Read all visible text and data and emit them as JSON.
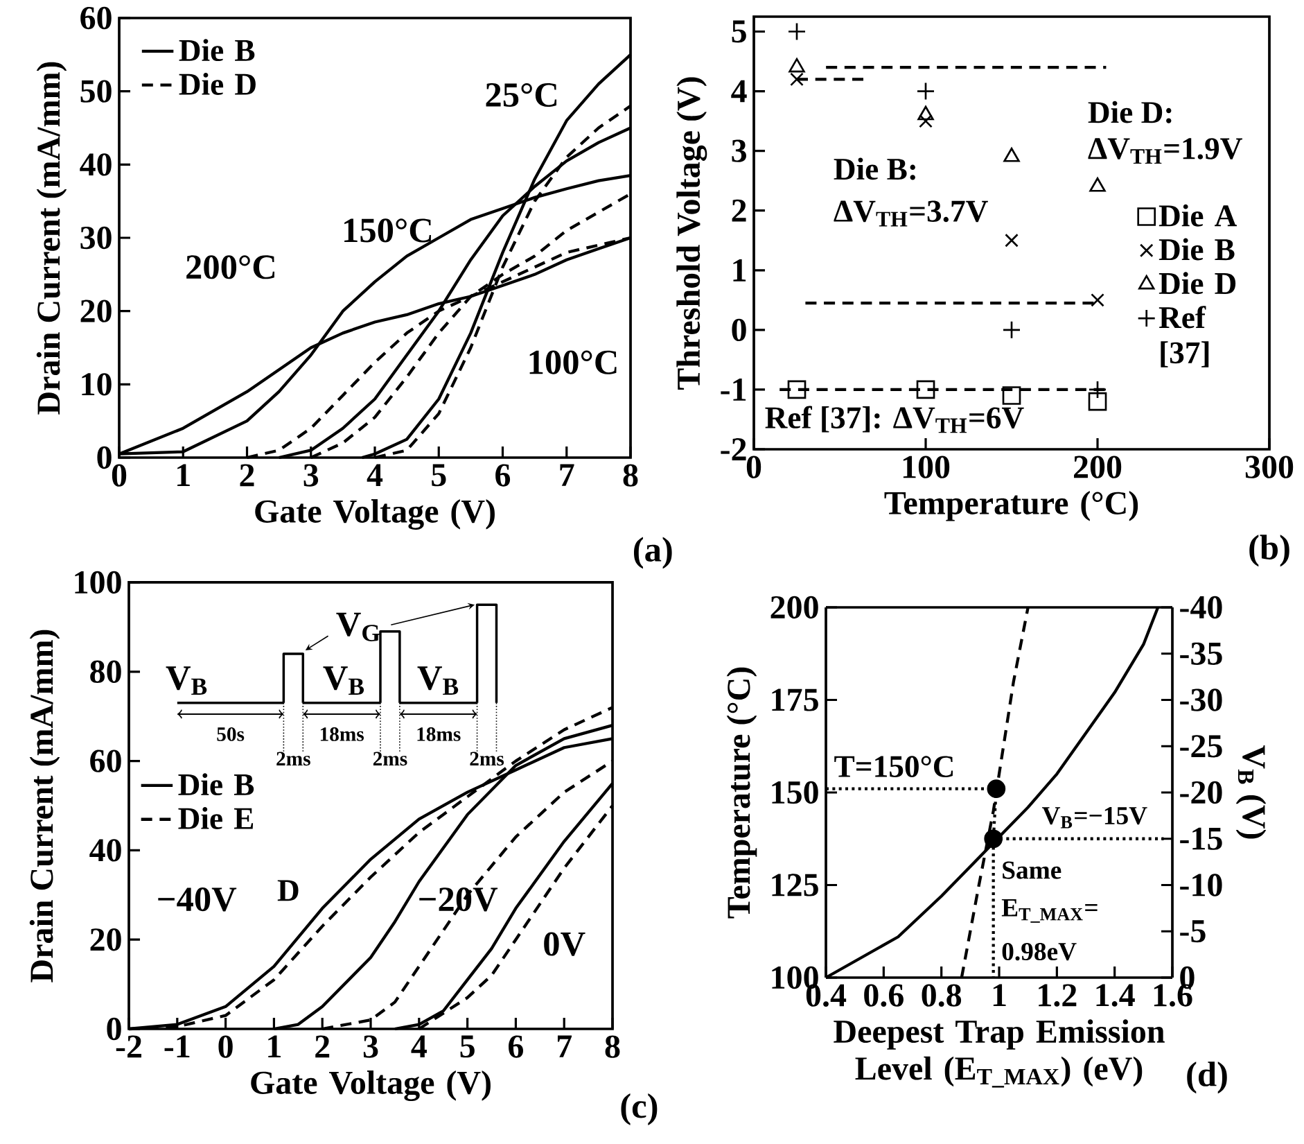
{
  "chart_data": [
    {
      "type": "line",
      "xlabel": "Gate Voltage (V)",
      "ylabel": "Drain Current (mA/mm)",
      "xlim": [
        0,
        8
      ],
      "ylim": [
        0,
        60
      ],
      "xticks": [
        0,
        1,
        2,
        3,
        4,
        5,
        6,
        7,
        8
      ],
      "yticks": [
        0,
        10,
        20,
        30,
        40,
        50,
        60
      ],
      "legend": "top left",
      "annotations": [
        "25°C",
        "150°C",
        "200°C",
        "100°C",
        "(a)"
      ],
      "series": [
        {
          "name": "Die B",
          "color": "#000000",
          "line_style": "solid",
          "x": [
            3.8,
            4,
            4.5,
            5,
            5.5,
            6,
            6.5,
            7,
            7.5,
            8
          ],
          "values": [
            0,
            0.5,
            2.5,
            8,
            17,
            28,
            38,
            46,
            51,
            55
          ]
        },
        {
          "name": "Die D",
          "color": "#000000",
          "line_style": "dashed",
          "x": [
            4,
            4.5,
            5,
            5.5,
            6,
            6.5,
            7,
            7.5,
            8
          ],
          "values": [
            0,
            1,
            6,
            15,
            26,
            35,
            41,
            45,
            48
          ]
        },
        {
          "color": "#000000",
          "line_style": "solid",
          "x": [
            2.5,
            3,
            3.5,
            4,
            4.5,
            5,
            5.5,
            6,
            6.5,
            7,
            7.5,
            8
          ],
          "values": [
            0,
            1,
            4,
            8,
            14,
            20,
            27,
            33,
            37,
            40.5,
            43,
            45
          ]
        },
        {
          "color": "#000000",
          "line_style": "solid",
          "x": [
            0,
            1,
            2,
            2.5,
            3,
            3.5,
            4,
            4.5,
            5,
            5.5,
            6,
            6.5,
            7,
            7.5,
            8
          ],
          "values": [
            0.5,
            0.8,
            5,
            9,
            14,
            20,
            24,
            27.5,
            30,
            32.5,
            34,
            35.5,
            36.7,
            37.8,
            38.5
          ]
        },
        {
          "color": "#000000",
          "line_style": "solid",
          "x": [
            0,
            1,
            2,
            2.5,
            3,
            3.5,
            4,
            4.5,
            5,
            5.5,
            6,
            6.5,
            7,
            7.5,
            8
          ],
          "values": [
            0.5,
            4,
            9,
            12,
            15,
            17,
            18.5,
            19.5,
            21,
            22,
            23.5,
            25,
            27,
            28.5,
            30
          ]
        },
        {
          "color": "#000000",
          "line_style": "dashed",
          "x": [
            3,
            3.5,
            4,
            4.5,
            5,
            5.5,
            6,
            6.5,
            7,
            7.5,
            8
          ],
          "values": [
            0,
            2,
            5.5,
            11,
            17,
            22,
            25,
            27.5,
            31,
            33.5,
            36
          ]
        },
        {
          "color": "#000000",
          "line_style": "dashed",
          "x": [
            2,
            2.5,
            3,
            3.5,
            4,
            4.5,
            5,
            5.5,
            6,
            6.5,
            7,
            7.5,
            8
          ],
          "values": [
            0,
            1,
            4,
            8.5,
            13,
            17,
            20,
            22,
            24,
            26,
            28,
            29,
            30
          ]
        }
      ]
    },
    {
      "type": "scatter",
      "xlabel": "Temperature (°C)",
      "ylabel": "Threshold Voltage (V)",
      "xlim": [
        0,
        300
      ],
      "ylim": [
        -2,
        5.25
      ],
      "xticks": [
        0,
        100,
        200,
        300
      ],
      "yticks": [
        -2,
        -1,
        0,
        1,
        2,
        3,
        4,
        5
      ],
      "legend": "right",
      "annotations": [
        "Die B:",
        "ΔV$_{TH}$=3.7V",
        "Die D:",
        "ΔV$_{TH}$=1.9V",
        "Ref [37]: ΔV$_{TH}$=6V",
        "(b)"
      ],
      "series": [
        {
          "name": "Die A",
          "color": "#000000",
          "marker": "square",
          "x": [
            25,
            100,
            150,
            200
          ],
          "values": [
            -1,
            -1,
            -1.1,
            -1.2
          ]
        },
        {
          "name": "Die B",
          "color": "#000000",
          "marker": "cross",
          "x": [
            25,
            100,
            150,
            200
          ],
          "values": [
            4.2,
            3.5,
            1.5,
            0.5
          ]
        },
        {
          "name": "Die D",
          "color": "#000000",
          "marker": "triangle",
          "x": [
            25,
            100,
            150,
            200
          ],
          "values": [
            4.4,
            3.6,
            2.9,
            2.4
          ]
        },
        {
          "name": "Ref [37]",
          "color": "#000000",
          "marker": "plus",
          "x": [
            25,
            100,
            150,
            200
          ],
          "values": [
            5,
            4,
            0,
            -1
          ]
        },
        {
          "type": "line",
          "color": "#000000",
          "line_style": "dashed",
          "x": [
            42,
            205
          ],
          "values": [
            4.4,
            4.4
          ]
        },
        {
          "type": "line",
          "color": "#000000",
          "line_style": "dashed",
          "x": [
            25,
            65
          ],
          "values": [
            4.2,
            4.2
          ]
        },
        {
          "type": "line",
          "color": "#000000",
          "line_style": "dashed",
          "x": [
            30,
            200
          ],
          "values": [
            0.45,
            0.45
          ]
        },
        {
          "type": "line",
          "color": "#000000",
          "line_style": "dashed",
          "x": [
            15,
            205
          ],
          "values": [
            -1,
            -1
          ]
        }
      ]
    },
    {
      "type": "line",
      "xlabel": "Gate Voltage (V)",
      "ylabel": "Drain Current (mA/mm)",
      "xlim": [
        -2,
        8
      ],
      "ylim": [
        0,
        100
      ],
      "xticks": [
        -2,
        -1,
        0,
        1,
        2,
        3,
        4,
        5,
        6,
        7,
        8
      ],
      "yticks": [
        0,
        20,
        40,
        60,
        80,
        100
      ],
      "legend": "left",
      "annotations": [
        "V$_{G}$",
        "V$_{B}$",
        "V$_{B}$",
        "V$_{B}$",
        "50s",
        "18ms",
        "18ms",
        "2ms",
        "2ms",
        "2ms",
        "−40V",
        "−20V",
        "0V",
        "D",
        "(c)"
      ],
      "series": [
        {
          "name": "Die B",
          "color": "#000000",
          "line_style": "solid",
          "x": [
            -2,
            -1,
            0,
            1,
            2,
            3,
            4,
            5,
            6,
            7,
            8
          ],
          "values": [
            0,
            1,
            5,
            14,
            27,
            38,
            47,
            53,
            58,
            63,
            65
          ]
        },
        {
          "name": "Die E",
          "color": "#000000",
          "line_style": "dashed",
          "x": [
            -2,
            -1,
            0,
            1,
            2,
            3,
            4,
            5,
            6,
            7,
            8
          ],
          "values": [
            0,
            0.5,
            3,
            11,
            23,
            34,
            44,
            52,
            60,
            67,
            72
          ]
        },
        {
          "color": "#000000",
          "line_style": "solid",
          "x": [
            1,
            1.5,
            2,
            3,
            3.5,
            4,
            5,
            6,
            7,
            8
          ],
          "values": [
            0,
            1,
            5,
            16,
            24,
            33,
            48,
            59,
            65,
            68
          ]
        },
        {
          "color": "#000000",
          "line_style": "dashed",
          "x": [
            2,
            3,
            3.5,
            4,
            5,
            6,
            7,
            8
          ],
          "values": [
            0,
            2,
            6,
            14,
            30,
            43,
            53,
            60
          ]
        },
        {
          "color": "#000000",
          "line_style": "solid",
          "x": [
            3.5,
            4,
            4.5,
            5,
            5.5,
            6,
            7,
            8
          ],
          "values": [
            0,
            1,
            4,
            11,
            18,
            27,
            42,
            55
          ]
        },
        {
          "color": "#000000",
          "line_style": "dashed",
          "x": [
            4,
            5,
            5.5,
            6,
            7,
            8
          ],
          "values": [
            0,
            7,
            12,
            20,
            36,
            50
          ]
        }
      ]
    },
    {
      "type": "line",
      "xlabel": "Deepest Trap Emission Level (E$_{T_MAX}$) (eV)",
      "ylabel": "Temperature (°C)",
      "y2label": "V$_{B}$ (V)",
      "xlim": [
        0.4,
        1.6
      ],
      "ylim": [
        100,
        200
      ],
      "y2lim": [
        0,
        -40
      ],
      "xticks": [
        0.4,
        0.6,
        0.8,
        1,
        1.2,
        1.4,
        1.6
      ],
      "yticks": [
        100,
        125,
        150,
        175,
        200
      ],
      "y2ticks": [
        0,
        -5,
        -10,
        -15,
        -20,
        -25,
        -30,
        -35,
        -40
      ],
      "annotations": [
        "T=150°C",
        "V$_{B}$=−15V",
        "Same",
        "E$_{T_MAX}$=",
        "0.98eV",
        "(d)"
      ],
      "series": [
        {
          "axis": "y2",
          "color": "#000000",
          "line_style": "solid",
          "x": [
            0.4,
            0.65,
            0.8,
            0.95,
            1.0,
            1.1,
            1.2,
            1.3,
            1.4,
            1.5,
            1.55
          ],
          "values": [
            0,
            -4.4,
            -8.8,
            -13.6,
            -15.2,
            -18.4,
            -22,
            -26.4,
            -30.8,
            -36,
            -40
          ]
        },
        {
          "color": "#000000",
          "line_style": "dashed",
          "x": [
            0.87,
            0.93,
            0.98,
            1.0,
            1.05,
            1.1
          ],
          "values": [
            100,
            125,
            145,
            155,
            180,
            200
          ]
        },
        {
          "color": "#000000",
          "line_style": "dotted",
          "x": [
            0.4,
            0.99
          ],
          "values": [
            151,
            151
          ]
        },
        {
          "color": "#000000",
          "line_style": "dotted",
          "x": [
            0.99,
            0.98,
            0.98
          ],
          "values": [
            151,
            137.5,
            100
          ]
        },
        {
          "color": "#000000",
          "line_style": "dotted",
          "x": [
            0.98,
            1.57
          ],
          "values": [
            137.5,
            137.5
          ]
        },
        {
          "type": "scatter",
          "color": "#000000",
          "marker": "circle",
          "x": [
            0.99,
            0.98
          ],
          "values": [
            151,
            137.5
          ]
        }
      ]
    }
  ]
}
